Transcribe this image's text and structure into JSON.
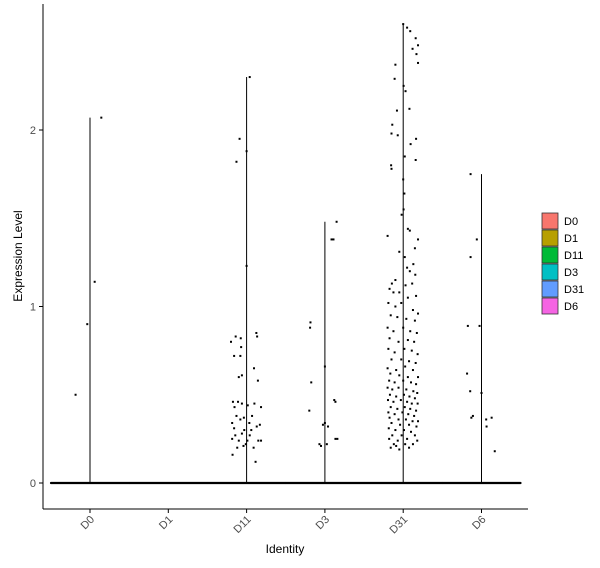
{
  "chart_data": {
    "type": "violin-jitter",
    "xlabel": "Identity",
    "ylabel": "Expression Level",
    "categories": [
      "D0",
      "D1",
      "D11",
      "D3",
      "D31",
      "D6"
    ],
    "y_ticks": [
      0,
      1,
      2
    ],
    "ylim": [
      -0.15,
      2.65
    ],
    "legend": {
      "placement": "right",
      "entries": [
        {
          "label": "D0",
          "color": "#F8766D"
        },
        {
          "label": "D1",
          "color": "#B79F00"
        },
        {
          "label": "D11",
          "color": "#00BA38"
        },
        {
          "label": "D3",
          "color": "#00BFC4"
        },
        {
          "label": "D31",
          "color": "#619CFF"
        },
        {
          "label": "D6",
          "color": "#F564E3"
        }
      ]
    },
    "groups": [
      {
        "category": "D0",
        "max": 2.07,
        "points": [
          [
            -0.37,
            0.5
          ],
          [
            -0.07,
            0.9
          ],
          [
            0.12,
            1.14
          ],
          [
            0.29,
            2.07
          ]
        ]
      },
      {
        "category": "D1",
        "max": 0.0,
        "points": []
      },
      {
        "category": "D11",
        "max": 2.3,
        "points": [
          [
            0.08,
            2.3
          ],
          [
            -0.18,
            1.95
          ],
          [
            -0.26,
            1.82
          ],
          [
            0.0,
            1.88
          ],
          [
            0.0,
            1.23
          ],
          [
            -0.4,
            0.8
          ],
          [
            -0.28,
            0.83
          ],
          [
            -0.15,
            0.82
          ],
          [
            -0.14,
            0.77
          ],
          [
            0.25,
            0.85
          ],
          [
            0.27,
            0.83
          ],
          [
            -0.32,
            0.72
          ],
          [
            -0.16,
            0.72
          ],
          [
            -0.2,
            0.6
          ],
          [
            -0.12,
            0.61
          ],
          [
            0.19,
            0.65
          ],
          [
            0.29,
            0.58
          ],
          [
            -0.35,
            0.46
          ],
          [
            -0.31,
            0.43
          ],
          [
            -0.22,
            0.46
          ],
          [
            -0.12,
            0.45
          ],
          [
            0.03,
            0.44
          ],
          [
            0.2,
            0.45
          ],
          [
            0.37,
            0.43
          ],
          [
            -0.37,
            0.34
          ],
          [
            -0.32,
            0.31
          ],
          [
            -0.26,
            0.38
          ],
          [
            -0.16,
            0.36
          ],
          [
            -0.07,
            0.37
          ],
          [
            0.07,
            0.34
          ],
          [
            0.14,
            0.38
          ],
          [
            0.26,
            0.32
          ],
          [
            0.34,
            0.33
          ],
          [
            -0.37,
            0.25
          ],
          [
            -0.29,
            0.27
          ],
          [
            -0.2,
            0.24
          ],
          [
            -0.12,
            0.28
          ],
          [
            -0.02,
            0.22
          ],
          [
            0.08,
            0.27
          ],
          [
            0.18,
            0.2
          ],
          [
            0.3,
            0.24
          ],
          [
            0.37,
            0.24
          ],
          [
            -0.36,
            0.16
          ],
          [
            -0.08,
            0.21
          ],
          [
            0.02,
            0.24
          ],
          [
            0.23,
            0.12
          ],
          [
            -0.24,
            0.2
          ],
          [
            0.12,
            0.3
          ],
          [
            -0.06,
            0.3
          ]
        ]
      },
      {
        "category": "D3",
        "max": 1.48,
        "points": [
          [
            -0.38,
            0.88
          ],
          [
            -0.37,
            0.91
          ],
          [
            -0.35,
            0.57
          ],
          [
            -0.4,
            0.41
          ],
          [
            0.0,
            0.66
          ],
          [
            0.17,
            1.38
          ],
          [
            0.22,
            1.38
          ],
          [
            0.3,
            1.48
          ],
          [
            0.24,
            0.47
          ],
          [
            0.27,
            0.46
          ],
          [
            -0.05,
            0.33
          ],
          [
            0.0,
            0.34
          ],
          [
            0.08,
            0.32
          ],
          [
            0.27,
            0.25
          ],
          [
            0.32,
            0.25
          ],
          [
            0.05,
            0.22
          ],
          [
            -0.14,
            0.22
          ],
          [
            -0.1,
            0.21
          ]
        ]
      },
      {
        "category": "D31",
        "max": 2.6,
        "points": [
          [
            0.0,
            2.6
          ],
          [
            0.1,
            2.58
          ],
          [
            0.18,
            2.56
          ],
          [
            0.32,
            2.52
          ],
          [
            0.38,
            2.48
          ],
          [
            0.24,
            2.46
          ],
          [
            0.34,
            2.43
          ],
          [
            0.38,
            2.38
          ],
          [
            -0.2,
            2.37
          ],
          [
            -0.22,
            2.29
          ],
          [
            -0.16,
            2.11
          ],
          [
            -0.14,
            1.97
          ],
          [
            -0.28,
            2.03
          ],
          [
            -0.3,
            1.98
          ],
          [
            0.01,
            2.25
          ],
          [
            0.06,
            2.22
          ],
          [
            0.16,
            2.12
          ],
          [
            0.33,
            1.95
          ],
          [
            0.19,
            1.92
          ],
          [
            -0.3,
            1.78
          ],
          [
            -0.31,
            1.8
          ],
          [
            0.0,
            1.72
          ],
          [
            0.04,
            1.85
          ],
          [
            0.32,
            1.83
          ],
          [
            0.03,
            1.64
          ],
          [
            0.01,
            1.55
          ],
          [
            -0.04,
            1.52
          ],
          [
            0.12,
            1.44
          ],
          [
            0.17,
            1.43
          ],
          [
            -0.4,
            1.4
          ],
          [
            0.38,
            1.38
          ],
          [
            0.3,
            1.33
          ],
          [
            -0.1,
            1.31
          ],
          [
            0.04,
            1.28
          ],
          [
            0.1,
            1.22
          ],
          [
            0.17,
            1.2
          ],
          [
            0.26,
            1.24
          ],
          [
            0.31,
            1.18
          ],
          [
            -0.2,
            1.15
          ],
          [
            -0.29,
            1.13
          ],
          [
            0.06,
            1.12
          ],
          [
            0.23,
            1.13
          ],
          [
            -0.35,
            1.1
          ],
          [
            -0.25,
            1.08
          ],
          [
            -0.1,
            1.08
          ],
          [
            0.12,
            1.05
          ],
          [
            0.33,
            1.06
          ],
          [
            -0.38,
            1.02
          ],
          [
            -0.2,
            1.0
          ],
          [
            -0.05,
            1.02
          ],
          [
            0.25,
            0.98
          ],
          [
            0.38,
            0.96
          ],
          [
            -0.32,
            0.95
          ],
          [
            -0.15,
            0.94
          ],
          [
            0.08,
            0.93
          ],
          [
            0.3,
            0.92
          ],
          [
            -0.4,
            0.88
          ],
          [
            -0.25,
            0.86
          ],
          [
            0.0,
            0.88
          ],
          [
            0.18,
            0.86
          ],
          [
            0.35,
            0.85
          ],
          [
            -0.35,
            0.82
          ],
          [
            -0.12,
            0.8
          ],
          [
            0.12,
            0.81
          ],
          [
            0.28,
            0.8
          ],
          [
            -0.38,
            0.76
          ],
          [
            -0.22,
            0.74
          ],
          [
            0.03,
            0.76
          ],
          [
            0.22,
            0.75
          ],
          [
            0.37,
            0.73
          ],
          [
            -0.3,
            0.7
          ],
          [
            -0.05,
            0.7
          ],
          [
            0.15,
            0.69
          ],
          [
            0.32,
            0.68
          ],
          [
            -0.4,
            0.65
          ],
          [
            -0.18,
            0.64
          ],
          [
            0.05,
            0.66
          ],
          [
            0.25,
            0.64
          ],
          [
            -0.33,
            0.62
          ],
          [
            -0.1,
            0.61
          ],
          [
            0.12,
            0.6
          ],
          [
            0.38,
            0.6
          ],
          [
            -0.36,
            0.58
          ],
          [
            -0.22,
            0.57
          ],
          [
            0.0,
            0.58
          ],
          [
            0.2,
            0.57
          ],
          [
            0.33,
            0.56
          ],
          [
            -0.4,
            0.54
          ],
          [
            -0.28,
            0.53
          ],
          [
            -0.12,
            0.54
          ],
          [
            0.08,
            0.53
          ],
          [
            0.26,
            0.52
          ],
          [
            0.36,
            0.51
          ],
          [
            -0.34,
            0.5
          ],
          [
            -0.18,
            0.49
          ],
          [
            0.02,
            0.5
          ],
          [
            0.16,
            0.49
          ],
          [
            0.3,
            0.48
          ],
          [
            -0.39,
            0.47
          ],
          [
            -0.25,
            0.46
          ],
          [
            -0.06,
            0.47
          ],
          [
            0.1,
            0.46
          ],
          [
            0.22,
            0.45
          ],
          [
            0.37,
            0.45
          ],
          [
            -0.32,
            0.43
          ],
          [
            -0.15,
            0.42
          ],
          [
            0.04,
            0.43
          ],
          [
            0.18,
            0.42
          ],
          [
            0.33,
            0.41
          ],
          [
            -0.38,
            0.4
          ],
          [
            -0.22,
            0.39
          ],
          [
            -0.02,
            0.4
          ],
          [
            0.13,
            0.39
          ],
          [
            0.28,
            0.38
          ],
          [
            -0.35,
            0.37
          ],
          [
            -0.12,
            0.36
          ],
          [
            0.07,
            0.36
          ],
          [
            0.24,
            0.35
          ],
          [
            0.38,
            0.35
          ],
          [
            -0.3,
            0.34
          ],
          [
            -0.08,
            0.33
          ],
          [
            0.15,
            0.33
          ],
          [
            0.34,
            0.32
          ],
          [
            -0.37,
            0.31
          ],
          [
            -0.2,
            0.3
          ],
          [
            0.02,
            0.3
          ],
          [
            0.2,
            0.29
          ],
          [
            -0.28,
            0.27
          ],
          [
            -0.04,
            0.27
          ],
          [
            0.3,
            0.27
          ],
          [
            -0.36,
            0.25
          ],
          [
            -0.14,
            0.24
          ],
          [
            0.1,
            0.25
          ],
          [
            0.36,
            0.24
          ],
          [
            -0.24,
            0.22
          ],
          [
            0.05,
            0.22
          ],
          [
            0.25,
            0.22
          ],
          [
            -0.32,
            0.2
          ],
          [
            -0.1,
            0.19
          ],
          [
            0.15,
            0.2
          ],
          [
            -0.18,
            0.21
          ]
        ]
      },
      {
        "category": "D6",
        "max": 1.75,
        "points": [
          [
            -0.28,
            1.75
          ],
          [
            -0.28,
            1.28
          ],
          [
            -0.12,
            1.38
          ],
          [
            -0.35,
            0.89
          ],
          [
            -0.05,
            0.89
          ],
          [
            -0.37,
            0.62
          ],
          [
            -0.29,
            0.52
          ],
          [
            0.0,
            0.51
          ],
          [
            -0.26,
            0.37
          ],
          [
            -0.22,
            0.38
          ],
          [
            0.12,
            0.36
          ],
          [
            0.26,
            0.37
          ],
          [
            0.13,
            0.32
          ],
          [
            0.34,
            0.18
          ]
        ]
      }
    ]
  }
}
